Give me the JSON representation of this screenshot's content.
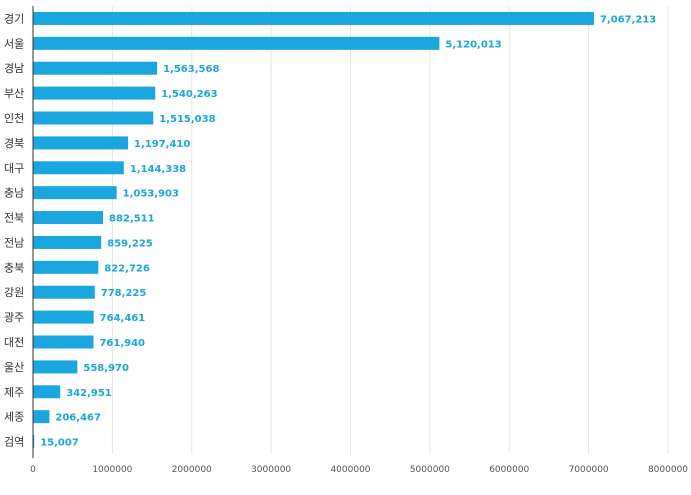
{
  "chart_data": {
    "type": "bar",
    "orientation": "horizontal",
    "categories": [
      "경기",
      "서울",
      "경남",
      "부산",
      "인천",
      "경북",
      "대구",
      "충남",
      "전북",
      "전남",
      "충북",
      "강원",
      "광주",
      "대전",
      "울산",
      "제주",
      "세종",
      "검역"
    ],
    "values": [
      7067213,
      5120013,
      1563568,
      1540263,
      1515038,
      1197410,
      1144338,
      1053903,
      882511,
      859225,
      822726,
      778225,
      764461,
      761940,
      558970,
      342951,
      206467,
      15007
    ],
    "value_labels": [
      "7,067,213",
      "5,120,013",
      "1,563,568",
      "1,540,263",
      "1,515,038",
      "1,197,410",
      "1,144,338",
      "1,053,903",
      "882,511",
      "859,225",
      "822,726",
      "778,225",
      "764,461",
      "761,940",
      "558,970",
      "342,951",
      "206,467",
      "15,007"
    ],
    "x_ticks": [
      "0",
      "1000000",
      "2000000",
      "3000000",
      "4000000",
      "5000000",
      "6000000",
      "7000000",
      "8000000"
    ],
    "xlim": [
      0,
      8000000
    ],
    "grid": true,
    "bar_color": "#1aa7df",
    "label_color": "#1aa7df",
    "title": "",
    "xlabel": "",
    "ylabel": ""
  }
}
